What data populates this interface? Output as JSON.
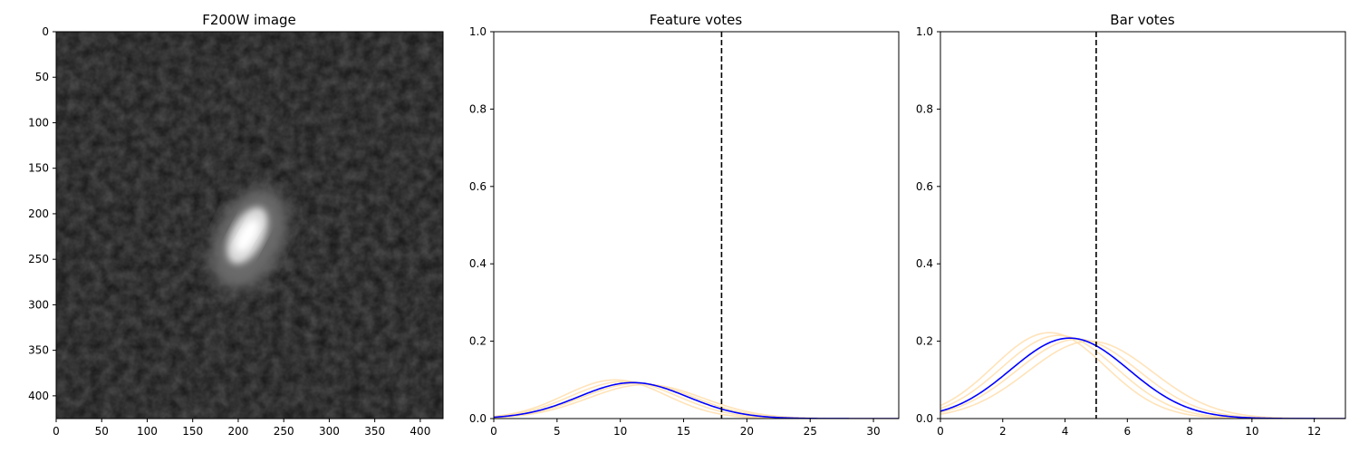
{
  "chart_data": [
    {
      "type": "image",
      "title": "F200W image",
      "colormap": "gray",
      "xlim": [
        0,
        425
      ],
      "ylim": [
        425,
        0
      ],
      "xticks": [
        0,
        50,
        100,
        150,
        200,
        250,
        300,
        350,
        400
      ],
      "yticks": [
        0,
        50,
        100,
        150,
        200,
        250,
        300,
        350,
        400
      ],
      "source": {
        "x": 212,
        "y": 228,
        "peak_x": 210,
        "peak_y": 224
      }
    },
    {
      "type": "line",
      "title": "Feature votes",
      "xlim": [
        0,
        32
      ],
      "ylim": [
        0,
        1
      ],
      "xticks": [
        0,
        5,
        10,
        15,
        20,
        25,
        30
      ],
      "yticks": [
        0.0,
        0.2,
        0.4,
        0.6,
        0.8,
        1.0
      ],
      "vline": 18,
      "series": [
        {
          "role": "mean",
          "color": "#0000ff",
          "mu": 11.0,
          "sigma": 4.3,
          "peak": 0.093
        },
        {
          "role": "sample",
          "color": "#ffdead",
          "mu": 9.6,
          "sigma": 4.0,
          "peak": 0.1
        },
        {
          "role": "sample",
          "color": "#ffdead",
          "mu": 10.3,
          "sigma": 4.2,
          "peak": 0.096
        },
        {
          "role": "sample",
          "color": "#ffdead",
          "mu": 11.4,
          "sigma": 4.4,
          "peak": 0.091
        },
        {
          "role": "sample",
          "color": "#ffdead",
          "mu": 12.0,
          "sigma": 4.5,
          "peak": 0.088
        }
      ]
    },
    {
      "type": "line",
      "title": "Bar votes",
      "xlim": [
        0,
        13
      ],
      "ylim": [
        0,
        1
      ],
      "xticks": [
        0,
        2,
        4,
        6,
        8,
        10,
        12
      ],
      "yticks": [
        0.0,
        0.2,
        0.4,
        0.6,
        0.8,
        1.0
      ],
      "vline": 5,
      "series": [
        {
          "role": "mean",
          "color": "#0000ff",
          "mu": 4.15,
          "sigma": 1.9,
          "peak": 0.208
        },
        {
          "role": "sample",
          "color": "#ffdead",
          "mu": 3.5,
          "sigma": 1.8,
          "peak": 0.222
        },
        {
          "role": "sample",
          "color": "#ffdead",
          "mu": 3.8,
          "sigma": 1.85,
          "peak": 0.215
        },
        {
          "role": "sample",
          "color": "#ffdead",
          "mu": 4.4,
          "sigma": 1.95,
          "peak": 0.205
        },
        {
          "role": "sample",
          "color": "#ffdead",
          "mu": 4.8,
          "sigma": 2.0,
          "peak": 0.2
        }
      ]
    }
  ]
}
